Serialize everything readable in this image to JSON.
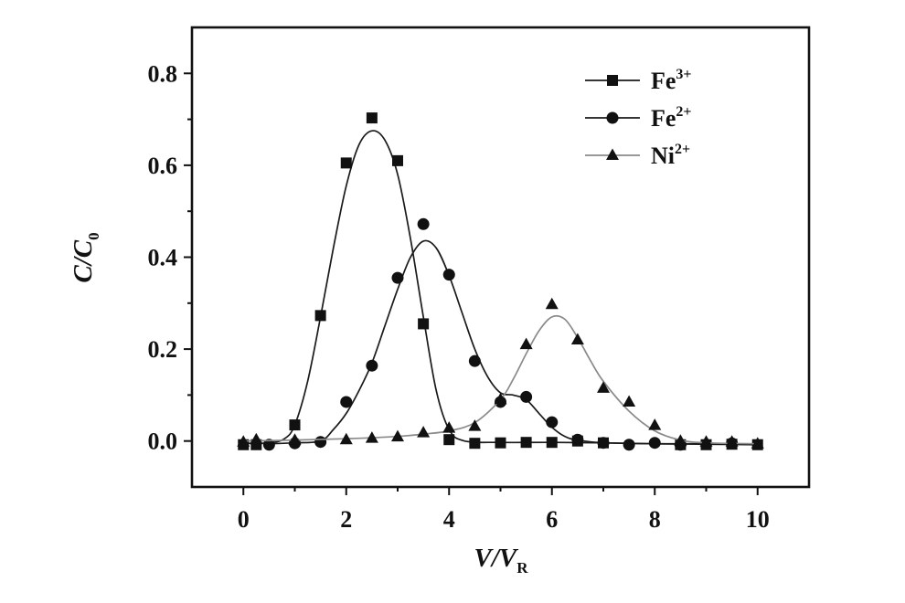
{
  "chart_data": {
    "type": "scatter",
    "xlabel": {
      "base": "V/V",
      "subscript": "R"
    },
    "ylabel": {
      "base": "C/C",
      "subscript": "0"
    },
    "xlim": [
      -1,
      11
    ],
    "ylim": [
      -0.1,
      0.9
    ],
    "xticks": [
      0,
      2,
      4,
      6,
      8,
      10
    ],
    "xtick_labels": [
      "0",
      "2",
      "4",
      "6",
      "8",
      "10"
    ],
    "yticks": [
      0,
      0.2,
      0.4,
      0.6,
      0.8
    ],
    "ytick_labels": [
      "0.0",
      "0.2",
      "0.4",
      "0.6",
      "0.8"
    ],
    "grid": false,
    "legend_position": "top-right",
    "series": [
      {
        "name": "Fe3+",
        "marker": "square",
        "line_color": "#1a1a1a",
        "marker_color": "#111111",
        "x": [
          0,
          0.25,
          1,
          1.5,
          2,
          2.5,
          3,
          3.5,
          4,
          4.5,
          5,
          5.5,
          6,
          6.5,
          7,
          8.5,
          9,
          9.5,
          10
        ],
        "y": [
          -0.008,
          -0.008,
          0.035,
          0.273,
          0.605,
          0.703,
          0.61,
          0.255,
          0.003,
          -0.005,
          -0.004,
          -0.003,
          -0.003,
          0.0,
          -0.004,
          -0.008,
          -0.008,
          -0.007,
          -0.008
        ],
        "fit": {
          "x": [
            0,
            0.5,
            0.8,
            1.0,
            1.25,
            1.5,
            1.75,
            2.0,
            2.25,
            2.5,
            2.75,
            3.0,
            3.25,
            3.5,
            3.75,
            4.0,
            4.3,
            5,
            6,
            7,
            8,
            9,
            10
          ],
          "y": [
            -0.005,
            -0.004,
            0.005,
            0.035,
            0.13,
            0.27,
            0.42,
            0.555,
            0.645,
            0.675,
            0.655,
            0.58,
            0.44,
            0.27,
            0.11,
            0.025,
            0.0,
            -0.003,
            -0.003,
            -0.004,
            -0.006,
            -0.007,
            -0.008
          ]
        }
      },
      {
        "name": "Fe2+",
        "marker": "circle",
        "line_color": "#1a1a1a",
        "marker_color": "#111111",
        "x": [
          0.5,
          1,
          1.5,
          2,
          2.5,
          3,
          3.5,
          4,
          4.5,
          5,
          5.5,
          6,
          6.5,
          7,
          7.5,
          8,
          8.5,
          9.5
        ],
        "y": [
          -0.008,
          -0.005,
          -0.002,
          0.085,
          0.164,
          0.355,
          0.472,
          0.362,
          0.174,
          0.085,
          0.096,
          0.041,
          0.003,
          -0.004,
          -0.008,
          -0.004,
          -0.008,
          -0.005
        ],
        "fit": {
          "x": [
            0.5,
            1.0,
            1.5,
            1.75,
            2.0,
            2.25,
            2.5,
            2.75,
            3.0,
            3.25,
            3.5,
            3.75,
            4.0,
            4.25,
            4.5,
            4.75,
            5.0,
            5.25,
            5.5,
            5.75,
            6.0,
            6.25,
            6.5,
            7.0,
            8,
            9,
            10
          ],
          "y": [
            -0.006,
            -0.004,
            0.0,
            0.025,
            0.06,
            0.11,
            0.17,
            0.25,
            0.33,
            0.4,
            0.435,
            0.42,
            0.36,
            0.28,
            0.2,
            0.14,
            0.105,
            0.1,
            0.09,
            0.06,
            0.03,
            0.01,
            0.002,
            -0.004,
            -0.006,
            -0.006,
            -0.007
          ]
        }
      },
      {
        "name": "Ni2+",
        "marker": "triangle",
        "line_color": "#8a8a8a",
        "marker_color": "#111111",
        "x": [
          0,
          0.25,
          1,
          2,
          2.5,
          3,
          3.5,
          4,
          4.5,
          5,
          5.5,
          6,
          6.5,
          7,
          7.5,
          8,
          8.5,
          9,
          9.5,
          10
        ],
        "y": [
          -0.002,
          0.003,
          0.002,
          0.003,
          0.006,
          0.009,
          0.018,
          0.028,
          0.032,
          0.09,
          0.21,
          0.297,
          0.22,
          0.115,
          0.085,
          0.034,
          0.0,
          -0.002,
          -0.002,
          -0.006
        ],
        "fit": {
          "x": [
            0,
            1,
            2,
            3,
            3.5,
            4,
            4.5,
            5.0,
            5.25,
            5.5,
            5.75,
            6.0,
            6.25,
            6.5,
            6.75,
            7.0,
            7.5,
            8.0,
            8.5,
            9,
            10
          ],
          "y": [
            0.0,
            0.002,
            0.005,
            0.01,
            0.015,
            0.022,
            0.04,
            0.09,
            0.135,
            0.19,
            0.24,
            0.27,
            0.265,
            0.225,
            0.175,
            0.13,
            0.065,
            0.022,
            0.002,
            -0.004,
            -0.006
          ]
        }
      }
    ]
  }
}
